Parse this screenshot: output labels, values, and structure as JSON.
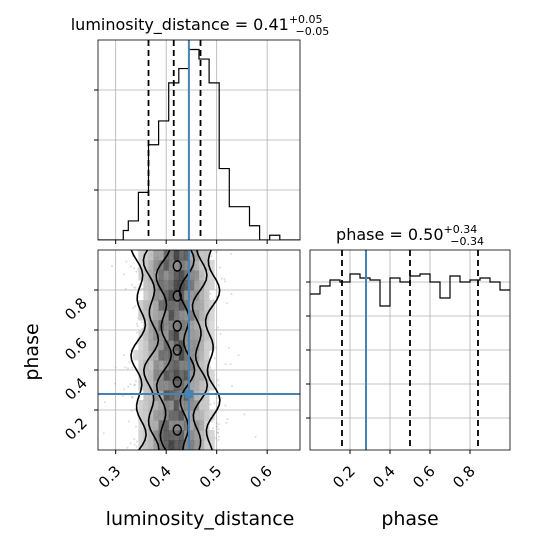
{
  "chart_data": {
    "type": "corner",
    "parameters": [
      "luminosity_distance",
      "phase"
    ],
    "injection": {
      "luminosity_distance": 0.445,
      "phase": 0.28
    },
    "titles": {
      "luminosity_distance": {
        "prefix": "luminosity_distance = 0.41",
        "sup": "+0.05",
        "sub": "−0.05"
      },
      "phase": {
        "prefix": "phase = 0.50",
        "sup": "+0.34",
        "sub": "−0.34"
      }
    },
    "axis_labels": {
      "x1": "luminosity_distance",
      "x2": "phase",
      "y": "phase"
    },
    "luminosity_distance_hist": {
      "xlim": [
        0.265,
        0.665
      ],
      "ticks": [
        "0.3",
        "0.4",
        "0.5",
        "0.6"
      ],
      "tick_values": [
        0.3,
        0.4,
        0.5,
        0.6
      ],
      "quantiles": [
        0.365,
        0.415,
        0.468
      ],
      "bin_edges": [
        0.265,
        0.275,
        0.285,
        0.295,
        0.305,
        0.315,
        0.325,
        0.335,
        0.345,
        0.355,
        0.365,
        0.375,
        0.385,
        0.395,
        0.405,
        0.415,
        0.425,
        0.435,
        0.445,
        0.455,
        0.465,
        0.475,
        0.485,
        0.495,
        0.505,
        0.515,
        0.525,
        0.535,
        0.545,
        0.555,
        0.565,
        0.575,
        0.585,
        0.595,
        0.605,
        0.615,
        0.625,
        0.635,
        0.645,
        0.655,
        0.665
      ],
      "counts": [
        0,
        0,
        0,
        0,
        0,
        2,
        4,
        4,
        10,
        10,
        20,
        20,
        25,
        25,
        33,
        33,
        36,
        36,
        40,
        40,
        38,
        38,
        33,
        33,
        15,
        15,
        7,
        7,
        7,
        7,
        3,
        3,
        0,
        0,
        1,
        1,
        0,
        0,
        0,
        0
      ]
    },
    "phase_hist": {
      "xlim": [
        0.0,
        1.0
      ],
      "ticks": [
        "0.2",
        "0.4",
        "0.6",
        "0.8"
      ],
      "tick_values": [
        0.2,
        0.4,
        0.6,
        0.8
      ],
      "quantiles": [
        0.16,
        0.5,
        0.84
      ],
      "bin_edges": [
        0.0,
        0.05,
        0.1,
        0.15,
        0.2,
        0.25,
        0.3,
        0.35,
        0.4,
        0.45,
        0.5,
        0.55,
        0.6,
        0.65,
        0.7,
        0.75,
        0.8,
        0.85,
        0.9,
        0.95,
        1.0
      ],
      "counts": [
        0.78,
        0.82,
        0.85,
        0.84,
        0.88,
        0.86,
        0.85,
        0.72,
        0.86,
        0.84,
        0.87,
        0.88,
        0.84,
        0.76,
        0.87,
        0.84,
        0.85,
        0.86,
        0.84,
        0.8
      ],
      "ylim": [
        0.0,
        1.0
      ]
    },
    "joint": {
      "xlim": [
        0.265,
        0.665
      ],
      "ylim": [
        0.0,
        1.0
      ],
      "y_ticks": [
        "0.2",
        "0.4",
        "0.6",
        "0.8"
      ],
      "y_tick_values": [
        0.2,
        0.4,
        0.6,
        0.8
      ],
      "x_ticks": [
        "0.3",
        "0.4",
        "0.5",
        "0.6"
      ],
      "x_tick_values": [
        0.3,
        0.4,
        0.5,
        0.6
      ],
      "center_x": 0.418,
      "spread_x": 0.038
    }
  }
}
